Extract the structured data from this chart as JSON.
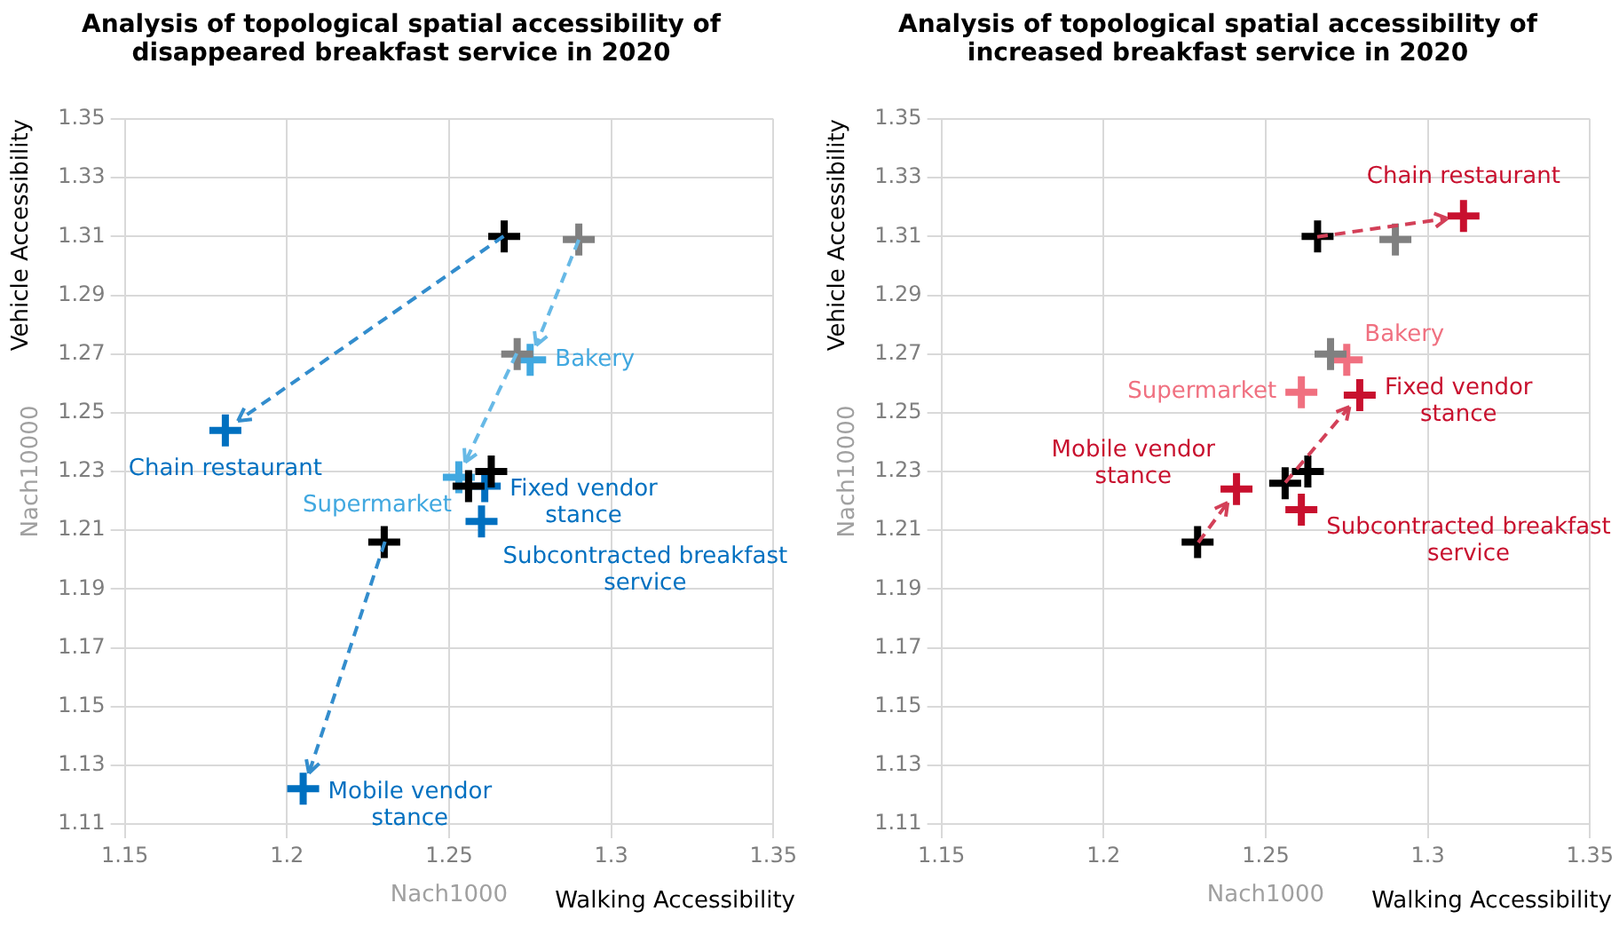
{
  "chart_data": [
    {
      "type": "scatter",
      "title": "Analysis of topological spatial accessibility of disappeared breakfast service in 2020",
      "xlabel": "Nach1000",
      "ylabel": "Nach10000",
      "annotations": [
        "Walking Accessibility",
        "Vehicle Accessibility"
      ],
      "xlim": [
        1.15,
        1.35
      ],
      "xticks": [
        1.15,
        1.2,
        1.25,
        1.3,
        1.35
      ],
      "ylim": [
        1.11,
        1.35
      ],
      "yticks": [
        1.11,
        1.13,
        1.15,
        1.17,
        1.19,
        1.21,
        1.23,
        1.25,
        1.27,
        1.29,
        1.31,
        1.33,
        1.35
      ],
      "grid": true,
      "marker": "cross",
      "series": [
        {
          "color": "#000000",
          "x": [
            1.267,
            1.23,
            1.263,
            1.256
          ],
          "values": [
            1.31,
            1.206,
            1.23,
            1.225
          ]
        },
        {
          "color": "#808080",
          "x": [
            1.29,
            1.271
          ],
          "values": [
            1.309,
            1.27
          ]
        },
        {
          "name": "Chain restaurant",
          "color": "#0070c0",
          "x": [
            1.181
          ],
          "values": [
            1.244
          ]
        },
        {
          "name": "Bakery",
          "color": "#41a8e0",
          "x": [
            1.275
          ],
          "values": [
            1.268
          ]
        },
        {
          "name": "Supermarket",
          "color": "#41a8e0",
          "x": [
            1.253
          ],
          "values": [
            1.228
          ]
        },
        {
          "name": "Fixed vendor stance",
          "color": "#0070c0",
          "x": [
            1.261
          ],
          "values": [
            1.225
          ]
        },
        {
          "name": "Subcontracted breakfast service",
          "color": "#0070c0",
          "x": [
            1.26
          ],
          "values": [
            1.213
          ]
        },
        {
          "name": "Mobile vendor stance",
          "color": "#0070c0",
          "x": [
            1.205
          ],
          "values": [
            1.122
          ]
        }
      ]
    },
    {
      "type": "scatter",
      "title": "Analysis of topological spatial accessibility of increased breakfast service in 2020",
      "xlabel": "Nach1000",
      "ylabel": "Nach10000",
      "annotations": [
        "Walking Accessibility",
        "Vehicle Accessibility"
      ],
      "xlim": [
        1.15,
        1.35
      ],
      "xticks": [
        1.15,
        1.2,
        1.25,
        1.3,
        1.35
      ],
      "ylim": [
        1.11,
        1.35
      ],
      "yticks": [
        1.11,
        1.13,
        1.15,
        1.17,
        1.19,
        1.21,
        1.23,
        1.25,
        1.27,
        1.29,
        1.31,
        1.33,
        1.35
      ],
      "grid": true,
      "marker": "cross",
      "series": [
        {
          "color": "#000000",
          "x": [
            1.266,
            1.229,
            1.263,
            1.256
          ],
          "values": [
            1.31,
            1.206,
            1.23,
            1.226
          ]
        },
        {
          "color": "#808080",
          "x": [
            1.29,
            1.27
          ],
          "values": [
            1.309,
            1.27
          ]
        },
        {
          "name": "Chain restaurant",
          "color": "#c8102e",
          "x": [
            1.311
          ],
          "values": [
            1.317
          ]
        },
        {
          "name": "Bakery",
          "color": "#f07080",
          "x": [
            1.275
          ],
          "values": [
            1.268
          ]
        },
        {
          "name": "Supermarket",
          "color": "#f07080",
          "x": [
            1.261
          ],
          "values": [
            1.257
          ]
        },
        {
          "name": "Fixed vendor stance",
          "color": "#c8102e",
          "x": [
            1.279
          ],
          "values": [
            1.256
          ]
        },
        {
          "name": "Mobile vendor stance",
          "color": "#c8102e",
          "x": [
            1.241
          ],
          "values": [
            1.224
          ]
        },
        {
          "name": "Subcontracted breakfast service",
          "color": "#c8102e",
          "x": [
            1.261
          ],
          "values": [
            1.217
          ]
        }
      ]
    }
  ]
}
